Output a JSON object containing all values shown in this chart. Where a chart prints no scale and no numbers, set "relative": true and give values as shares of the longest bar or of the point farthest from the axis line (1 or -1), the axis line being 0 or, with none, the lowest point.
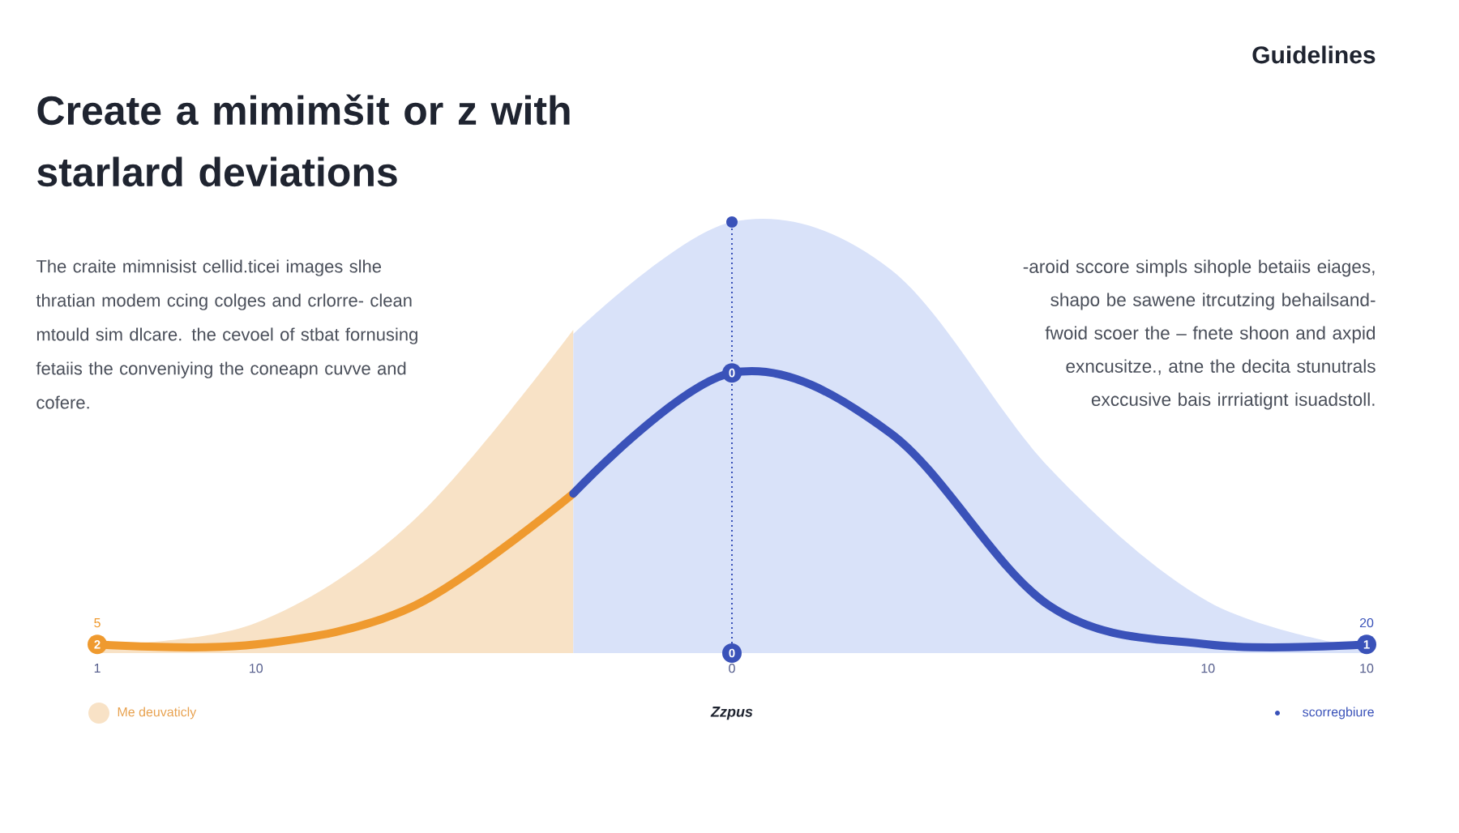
{
  "chart_data": {
    "type": "line",
    "relative": true,
    "title": "Create a mimimšit or z with starlard deviations",
    "subtitle": "Guidelines",
    "xlabel": "Zzpus",
    "categories": [
      "1",
      "10",
      null,
      null,
      "0",
      null,
      null,
      "10",
      "10"
    ],
    "series": [
      {
        "type": "area",
        "name": "Me deuvaticly",
        "color": "#f8e2c6",
        "values": [
          0.02,
          0.07,
          0.31,
          0.75,
          null,
          null,
          null,
          null,
          null
        ]
      },
      {
        "type": "area",
        "color": "#d9e2f9",
        "values": [
          null,
          null,
          null,
          0.74,
          1,
          0.89,
          0.43,
          0.12,
          0.01
        ]
      },
      {
        "color": "#ef9a2f",
        "values": [
          0.02,
          0.02,
          0.11,
          0.37,
          null,
          null,
          null,
          null,
          null
        ]
      },
      {
        "name": "scorregbiure",
        "color": "#3a52b9",
        "values": [
          null,
          null,
          null,
          0.37,
          0.65,
          0.51,
          0.11,
          0.02,
          0.02
        ]
      }
    ],
    "ref_lines": [
      {
        "axis": "x",
        "value": "0",
        "color": "#3a52b9",
        "line_style": "dotted"
      }
    ],
    "annotations": [
      "The craite mimnisist cellid.ticei images slhe thratian modem ccing colges and crlorre- clean mtould sim dlcare. the cevoel of stbat fornusing fetaiis the conveniying the coneapn cuvve and cofere.",
      "-aroid sccore simpls sihople betaiis eiages, shapo be sawene itrcutzing behailsand- fwoid scoer the – fnete shoon and axpid exncusitze., atne the decita stunutrals exccusive bais irrriatignt isuadstoll.",
      {
        "text": "2",
        "x": "1",
        "y": 0.02
      },
      {
        "text": "5",
        "x": "1",
        "y": 0.02
      },
      {
        "text": "0",
        "x": "0",
        "y": 0.65
      },
      {
        "text": "0",
        "x": "0",
        "y": 0
      },
      "1",
      "20"
    ],
    "legend": "bottom",
    "line_style": "solid",
    "marker": "none"
  }
}
